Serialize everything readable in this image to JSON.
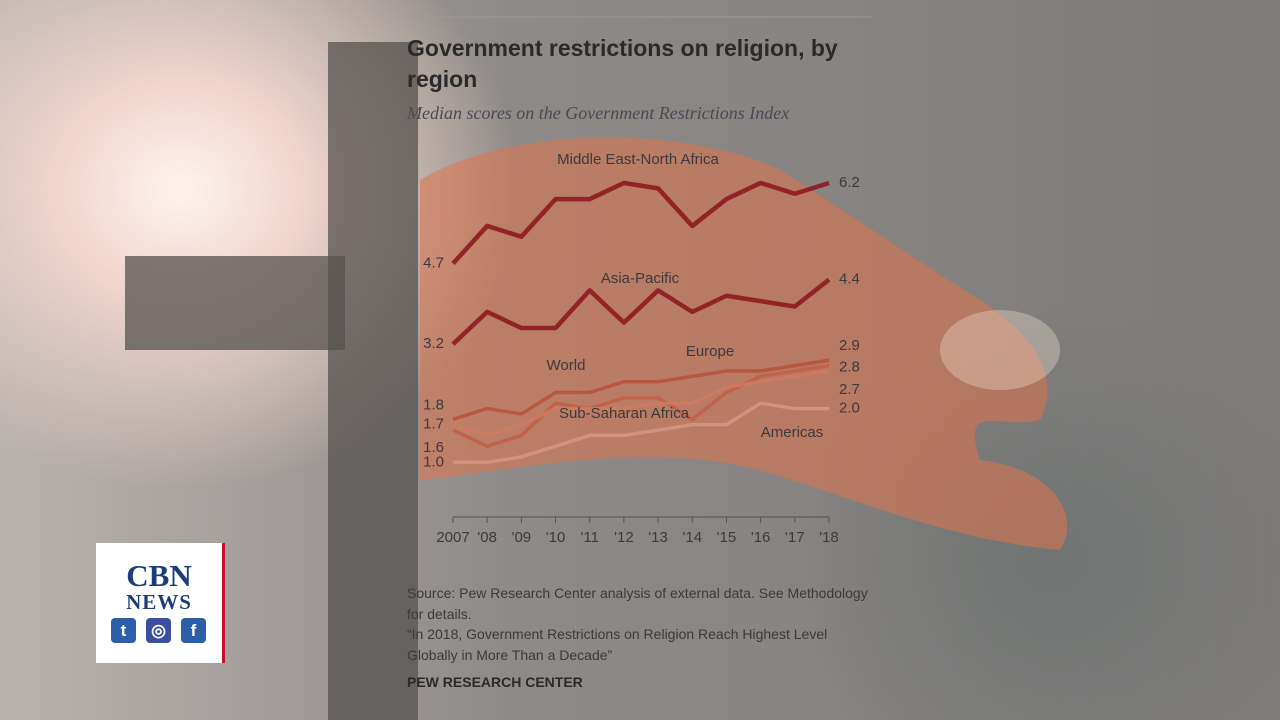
{
  "chart_data": {
    "type": "line",
    "title": "Government restrictions on religion, by region",
    "subtitle": "Median scores on the Government Restrictions Index",
    "categories": [
      "2007",
      "'08",
      "'09",
      "'10",
      "'11",
      "'12",
      "'13",
      "'14",
      "'15",
      "'16",
      "'17",
      "'18"
    ],
    "ylim": [
      0,
      7
    ],
    "series": [
      {
        "name": "Middle East-North Africa",
        "color": "#8e1f24",
        "values": [
          4.7,
          5.4,
          5.2,
          5.9,
          5.9,
          6.2,
          6.1,
          5.4,
          5.9,
          6.2,
          6.0,
          6.2
        ],
        "value_labels": [
          "4.7",
          null,
          null,
          null,
          null,
          null,
          null,
          null,
          null,
          null,
          null,
          "6.2"
        ]
      },
      {
        "name": "Asia-Pacific",
        "color": "#8e1f24",
        "values": [
          3.2,
          3.8,
          3.5,
          3.5,
          4.2,
          3.6,
          4.2,
          3.8,
          4.1,
          4.0,
          3.9,
          4.4
        ],
        "value_labels": [
          "3.2",
          null,
          null,
          null,
          null,
          null,
          null,
          null,
          null,
          null,
          null,
          "4.4"
        ]
      },
      {
        "name": "World",
        "color": "#b8503a",
        "values": [
          1.8,
          2.0,
          1.9,
          2.3,
          2.3,
          2.5,
          2.5,
          2.6,
          2.7,
          2.7,
          2.8,
          2.9
        ],
        "value_labels": [
          "1.8",
          null,
          null,
          null,
          null,
          null,
          null,
          null,
          null,
          null,
          null,
          "2.9"
        ]
      },
      {
        "name": "Europe",
        "color": "#c25e45",
        "values": [
          1.6,
          1.3,
          1.5,
          2.1,
          2.0,
          2.2,
          2.2,
          1.8,
          2.3,
          2.6,
          2.7,
          2.8
        ],
        "value_labels": [
          "1.6",
          null,
          null,
          null,
          null,
          null,
          null,
          null,
          null,
          null,
          null,
          "2.8"
        ]
      },
      {
        "name": "Sub-Saharan Africa",
        "color": "#cf7a62",
        "values": [
          1.7,
          1.5,
          1.7,
          2.0,
          2.0,
          2.0,
          2.1,
          2.1,
          2.4,
          2.5,
          2.6,
          2.7
        ],
        "value_labels": [
          "1.7",
          null,
          null,
          null,
          null,
          null,
          null,
          null,
          null,
          null,
          null,
          "2.7"
        ]
      },
      {
        "name": "Americas",
        "color": "#d69682",
        "values": [
          1.0,
          1.0,
          1.1,
          1.3,
          1.5,
          1.5,
          1.6,
          1.7,
          1.7,
          2.1,
          2.0,
          2.0
        ],
        "value_labels": [
          "1.0",
          null,
          null,
          null,
          null,
          null,
          null,
          null,
          null,
          null,
          null,
          "2.0"
        ]
      }
    ],
    "source": "Source: Pew Research Center analysis of external data. See Methodology for details.",
    "quote": "“In 2018, Government Restrictions on Religion Reach Highest Level Globally in More Than a Decade”",
    "credit": "PEW RESEARCH CENTER"
  },
  "logo": {
    "name": "CBN",
    "sub": "NEWS"
  }
}
